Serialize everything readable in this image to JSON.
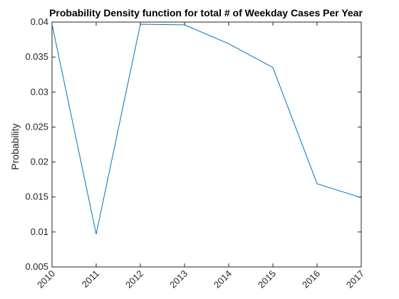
{
  "chart_data": {
    "type": "line",
    "title": "Probability Density function for total # of Weekday Cases Per Year",
    "xlabel": "",
    "ylabel": "Probability",
    "x": [
      "2010",
      "2011",
      "2012",
      "2013",
      "2014",
      "2015",
      "2016",
      "2017"
    ],
    "series": [
      {
        "values": [
          0.0397,
          0.0097,
          0.0397,
          0.0396,
          0.0369,
          0.0335,
          0.0169,
          0.0149
        ]
      }
    ],
    "xlim": [
      2010,
      2017
    ],
    "ylim": [
      0.005,
      0.04
    ],
    "yticks": [
      0.005,
      0.01,
      0.015,
      0.02,
      0.025,
      0.03,
      0.035,
      0.04
    ],
    "ytick_labels": [
      "0.005",
      "0.01",
      "0.015",
      "0.02",
      "0.025",
      "0.03",
      "0.035",
      "0.04"
    ],
    "grid": false,
    "line_color": "#0072BD"
  }
}
